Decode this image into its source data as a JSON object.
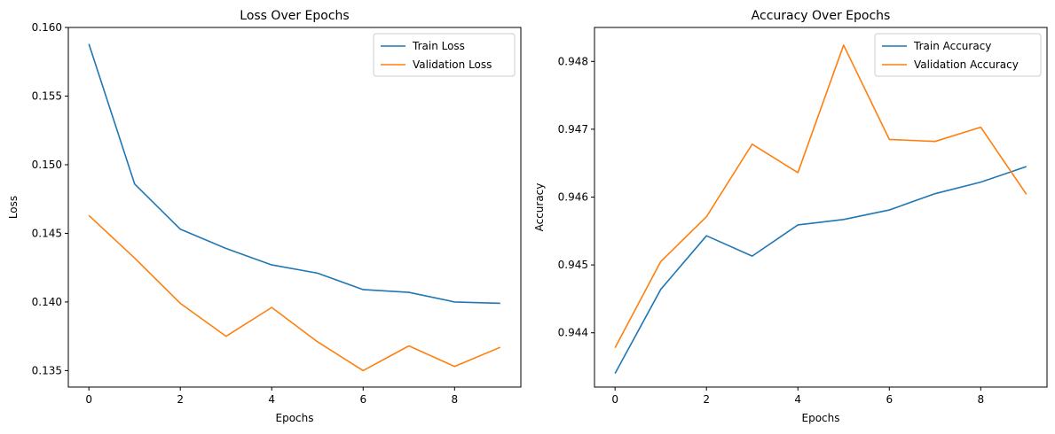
{
  "chart_data": [
    {
      "type": "line",
      "title": "Loss Over Epochs",
      "xlabel": "Epochs",
      "ylabel": "Loss",
      "xlim": [
        -0.45,
        9.45
      ],
      "ylim": [
        0.1338,
        0.16
      ],
      "xticks": [
        0,
        2,
        4,
        6,
        8
      ],
      "xtick_labels": [
        "0",
        "2",
        "4",
        "6",
        "8"
      ],
      "yticks": [
        0.135,
        0.14,
        0.145,
        0.15,
        0.155,
        0.16
      ],
      "ytick_labels": [
        "0.135",
        "0.140",
        "0.145",
        "0.150",
        "0.155",
        "0.160"
      ],
      "legend_position": "top-right",
      "x": [
        0,
        1,
        2,
        3,
        4,
        5,
        6,
        7,
        8,
        9
      ],
      "series": [
        {
          "name": "Train Loss",
          "color": "#1f77b4",
          "values": [
            0.1588,
            0.1486,
            0.1453,
            0.1439,
            0.1427,
            0.1421,
            0.1409,
            0.1407,
            0.14,
            0.1399
          ]
        },
        {
          "name": "Validation Loss",
          "color": "#ff7f0e",
          "values": [
            0.1463,
            0.1432,
            0.1399,
            0.1375,
            0.1396,
            0.1371,
            0.135,
            0.1368,
            0.1353,
            0.1367
          ]
        }
      ]
    },
    {
      "type": "line",
      "title": "Accuracy Over Epochs",
      "xlabel": "Epochs",
      "ylabel": "Accuracy",
      "xlim": [
        -0.45,
        9.45
      ],
      "ylim": [
        0.9432,
        0.9485
      ],
      "xticks": [
        0,
        2,
        4,
        6,
        8
      ],
      "xtick_labels": [
        "0",
        "2",
        "4",
        "6",
        "8"
      ],
      "yticks": [
        0.944,
        0.945,
        0.946,
        0.947,
        0.948
      ],
      "ytick_labels": [
        "0.944",
        "0.945",
        "0.946",
        "0.947",
        "0.948"
      ],
      "legend_position": "top-right",
      "x": [
        0,
        1,
        2,
        3,
        4,
        5,
        6,
        7,
        8,
        9
      ],
      "series": [
        {
          "name": "Train Accuracy",
          "color": "#1f77b4",
          "values": [
            0.9434,
            0.94464,
            0.94543,
            0.94513,
            0.94559,
            0.94567,
            0.94581,
            0.94605,
            0.94622,
            0.94645
          ]
        },
        {
          "name": "Validation Accuracy",
          "color": "#ff7f0e",
          "values": [
            0.94378,
            0.94505,
            0.94571,
            0.94678,
            0.94636,
            0.94824,
            0.94685,
            0.94682,
            0.94703,
            0.94604
          ]
        }
      ]
    }
  ]
}
